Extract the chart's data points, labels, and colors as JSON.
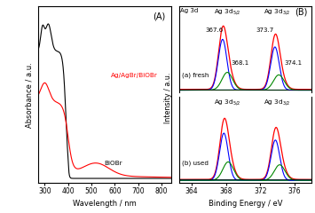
{
  "panel_A": {
    "label": "(A)",
    "xlabel": "Wavelength / nm",
    "ylabel": "Absorbance / a.u.",
    "xlim": [
      270,
      840
    ],
    "BiOBr_color": "#000000",
    "AgAgBrBiOBr_color": "#ff0000",
    "BiOBr_label": "BiOBr",
    "AgAgBrBiOBr_label": "Ag/AgBr/BiOBr",
    "xticks": [
      300,
      400,
      500,
      600,
      700,
      800
    ]
  },
  "panel_B": {
    "label": "(B)",
    "xlabel": "Binding Energy / eV",
    "ylabel": "Intensity / a.u.",
    "xlim": [
      362.5,
      378
    ],
    "xticks": [
      364,
      368,
      372,
      376
    ],
    "fresh_label": "(a) fresh",
    "used_label": "(b) used",
    "envelope_color": "#ff0000",
    "AgBr_color": "#0000ff",
    "Ag_color": "#008800",
    "bg_color": "#000000",
    "sigma_blue": 0.5,
    "sigma_green": 0.62,
    "fresh_blue_52": 367.6,
    "fresh_green_52": 368.15,
    "fresh_blue_32": 373.7,
    "fresh_green_32": 374.15,
    "fresh_amp_blue_52": 1.0,
    "fresh_amp_green_52": 0.35,
    "fresh_amp_blue_32": 0.85,
    "fresh_amp_green_32": 0.3,
    "used_blue_52": 367.75,
    "used_green_52": 368.25,
    "used_blue_32": 373.75,
    "used_green_32": 374.25,
    "used_amp_blue_52": 0.82,
    "used_amp_green_52": 0.32,
    "used_amp_blue_32": 0.7,
    "used_amp_green_32": 0.27
  }
}
